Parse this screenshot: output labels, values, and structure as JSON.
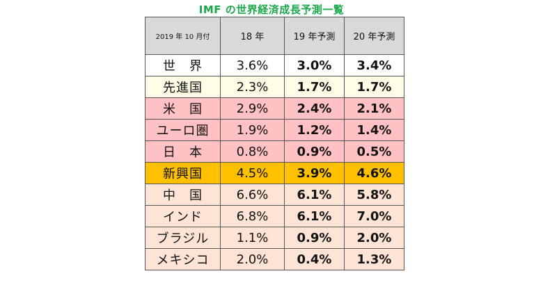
{
  "title": "IMF の世界経済成長予測一覧",
  "colors": {
    "title": "#1aa84a",
    "header_bg": "#d9d9d9",
    "world_bg": "#ffffff",
    "advanced_bg": "#fffde6",
    "developed_group_bg": "#ffc1c4",
    "emerging_bg": "#ffc000",
    "emerging_group_bg": "#fde4d4"
  },
  "table": {
    "headers": [
      "2019 年 10 月付",
      "18 年",
      "19 年予測",
      "20 年予測"
    ],
    "rows": [
      {
        "name": "世　界",
        "v18": "3.6%",
        "v19": "3.0%",
        "v20": "3.4%",
        "group": "white"
      },
      {
        "name": "先進国",
        "v18": "2.3%",
        "v19": "1.7%",
        "v20": "1.7%",
        "group": "cream"
      },
      {
        "name": "米　国",
        "v18": "2.9%",
        "v19": "2.4%",
        "v20": "2.1%",
        "group": "pink"
      },
      {
        "name": "ユーロ圏",
        "v18": "1.9%",
        "v19": "1.2%",
        "v20": "1.4%",
        "group": "pink"
      },
      {
        "name": "日　本",
        "v18": "0.8%",
        "v19": "0.9%",
        "v20": "0.5%",
        "group": "pink"
      },
      {
        "name": "新興国",
        "v18": "4.5%",
        "v19": "3.9%",
        "v20": "4.6%",
        "group": "orange"
      },
      {
        "name": "中　国",
        "v18": "6.6%",
        "v19": "6.1%",
        "v20": "5.8%",
        "group": "peach"
      },
      {
        "name": "インド",
        "v18": "6.8%",
        "v19": "6.1%",
        "v20": "7.0%",
        "group": "peach"
      },
      {
        "name": "ブラジル",
        "v18": "1.1%",
        "v19": "0.9%",
        "v20": "2.0%",
        "group": "peach"
      },
      {
        "name": "メキシコ",
        "v18": "2.0%",
        "v19": "0.4%",
        "v20": "1.3%",
        "group": "peach"
      }
    ]
  }
}
